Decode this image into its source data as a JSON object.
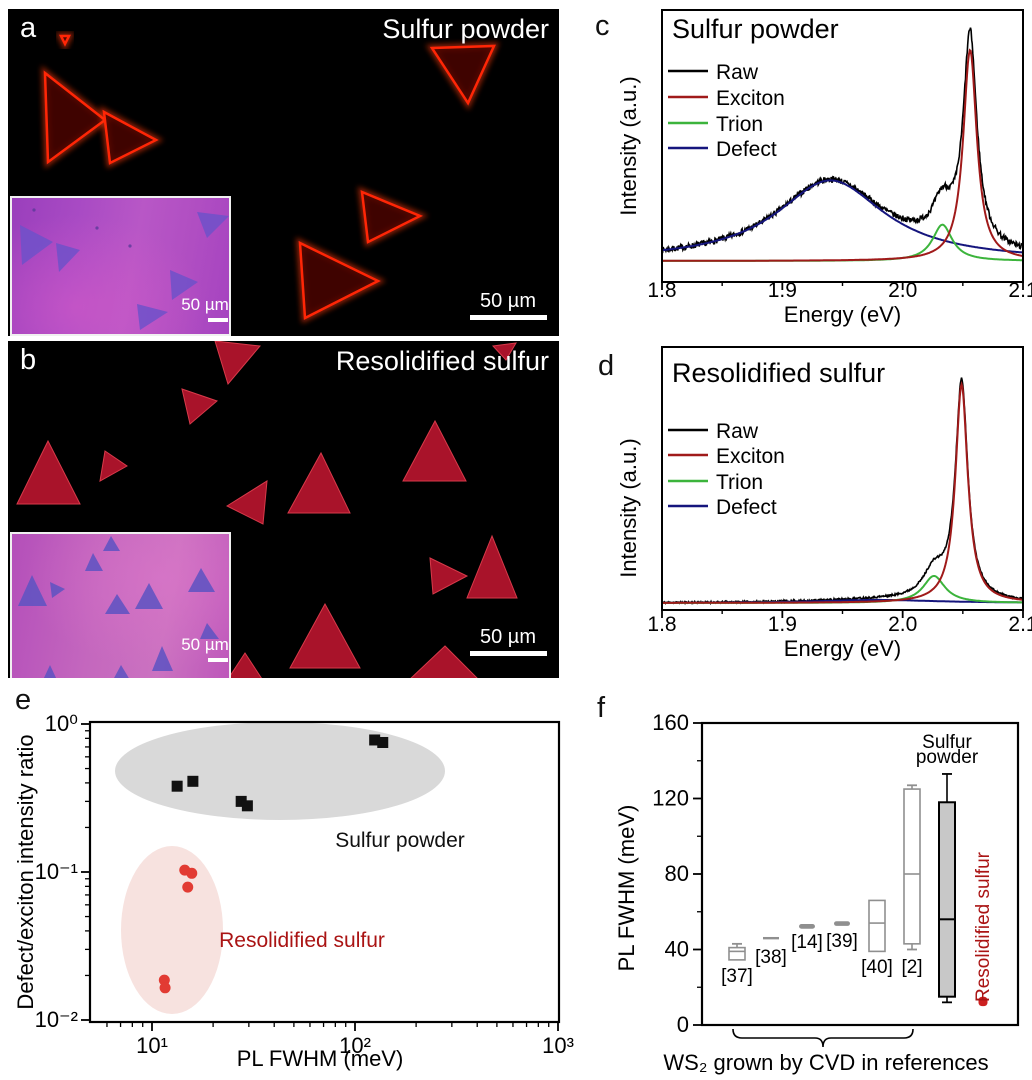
{
  "colors": {
    "raw": "#000000",
    "exciton": "#a01a1a",
    "trion": "#3cb43c",
    "defect": "#15157d",
    "scatter_black": "#111111",
    "scatter_red": "#e23b33",
    "ellipse_gray": "#d9d9d9",
    "ellipse_pink": "#f7e2df",
    "box_gray": "#8f8f8f",
    "box_fill": "#c8c8c8",
    "box_red": "#cc2020",
    "annotation_red": "#aa1414",
    "mic_triangle_a_stroke": "#ff2606",
    "mic_triangle_a_fill": "#4a0300",
    "mic_triangle_b_fill": "#b2142c",
    "inset_a_triangle": "#6f51c9",
    "inset_b_triangle": "#6053c2"
  },
  "panels": {
    "a": {
      "label": "a",
      "title": "Sulfur powder",
      "scale_bar": "50 µm",
      "triangles": [
        "37,64 97,111 40,153",
        "96,103 148,131 102,154",
        "424,39 486,37 460,94",
        "354,183 412,207 360,233",
        "292,234 370,272 297,309",
        "53,27 61,27 57,35"
      ],
      "inset": {
        "scale_bar": "50 µm",
        "triangles": [
          "8,27 41,44 10,67",
          "44,45 68,52 47,74",
          "185,14 217,18 195,40",
          "158,72 186,84 160,102",
          "125,106 156,114 128,132"
        ]
      }
    },
    "b": {
      "label": "b",
      "title": "Resolidified sulfur",
      "scale_bar": "50 µm",
      "triangles": [
        "207,0 252,5 220,43",
        "485,5 508,2 498,19",
        "174,48 209,60 182,83",
        "40,100 9,163 72,163",
        "97,110 119,125 92,140",
        "219,165 259,140 255,183",
        "313,112 280,172 342,172",
        "427,80 395,140 458,140",
        "422,217 459,235 425,253",
        "484,195 459,257 509,257",
        "317,263 282,327 352,327",
        "437,305 400,340 472,340",
        "237,312 220,338 254,338"
      ],
      "inset": {
        "scale_bar": "50 µm",
        "triangles": [
          "99,2 91,17 108,17",
          "81,19 73,37 91,37",
          "20,41 6,72 35,72",
          "38,48 53,55 40,64",
          "105,60 93,80 118,80",
          "137,49 123,75 151,75",
          "189,34 176,58 203,58",
          "195,89 188,105 207,105",
          "150,112 140,137 161,137",
          "38,131 31,146 45,146",
          "109,131 101,146 118,146"
        ]
      }
    },
    "c": {
      "label": "c"
    },
    "d": {
      "label": "d"
    },
    "e": {
      "label": "e"
    },
    "f": {
      "label": "f"
    }
  },
  "chart_data": [
    {
      "id": "c",
      "type": "line",
      "title": "Sulfur powder",
      "xlabel": "Energy (eV)",
      "ylabel": "Intensity (a.u.)",
      "xlim": [
        1.8,
        2.1
      ],
      "xticks": [
        1.8,
        1.9,
        2.0,
        2.1
      ],
      "xtick_labels": [
        "1.8",
        "1.9",
        "2.0",
        "2.1"
      ],
      "grid": false,
      "legend_position": "upper-left",
      "series": [
        {
          "name": "Raw",
          "color": "#000000",
          "role": "sum",
          "noise": 0.013
        },
        {
          "name": "Exciton",
          "color": "#a01a1a",
          "peak": {
            "shape": "lorentzian",
            "center": 2.056,
            "hwhm": 0.0068,
            "amplitude": 0.93
          }
        },
        {
          "name": "Trion",
          "color": "#3cb43c",
          "peak": {
            "shape": "lorentzian",
            "center": 2.033,
            "hwhm": 0.01,
            "amplitude": 0.16
          }
        },
        {
          "name": "Defect",
          "color": "#15157d",
          "peak": {
            "shape": "lorentzian",
            "center": 1.94,
            "hwhm": 0.055,
            "amplitude": 0.355
          }
        }
      ]
    },
    {
      "id": "d",
      "type": "line",
      "title": "Resolidified sulfur",
      "xlabel": "Energy (eV)",
      "ylabel": "Intensity (a.u.)",
      "xlim": [
        1.8,
        2.1
      ],
      "xticks": [
        1.8,
        1.9,
        2.0,
        2.1
      ],
      "xtick_labels": [
        "1.8",
        "1.9",
        "2.0",
        "2.1"
      ],
      "grid": false,
      "legend_position": "upper-left",
      "series": [
        {
          "name": "Raw",
          "color": "#000000",
          "role": "sum",
          "noise": 0.004
        },
        {
          "name": "Exciton",
          "color": "#a01a1a",
          "peak": {
            "shape": "lorentzian",
            "center": 2.049,
            "hwhm": 0.0062,
            "amplitude": 0.93
          }
        },
        {
          "name": "Trion",
          "color": "#3cb43c",
          "peak": {
            "shape": "lorentzian",
            "center": 2.026,
            "hwhm": 0.011,
            "amplitude": 0.115
          }
        },
        {
          "name": "Defect",
          "color": "#15157d",
          "peak": {
            "shape": "lorentzian",
            "center": 1.98,
            "hwhm": 0.06,
            "amplitude": 0.013
          }
        }
      ]
    },
    {
      "id": "e",
      "type": "scatter",
      "xlabel": "PL FWHM (meV)",
      "ylabel": "Defect/exciton intensity ratio",
      "xscale": "log",
      "yscale": "log",
      "xlim": [
        4.8,
        1000
      ],
      "ylim": [
        0.0095,
        1.05
      ],
      "xtick_labels": [
        "10¹",
        "10²",
        "10³"
      ],
      "ytick_labels": [
        "10⁰",
        "10⁻¹",
        "10⁻²"
      ],
      "series": [
        {
          "name": "Sulfur powder",
          "marker": "square",
          "color": "#111111",
          "points": [
            [
              13.3,
              0.38
            ],
            [
              15.9,
              0.41
            ],
            [
              27.5,
              0.3
            ],
            [
              29.5,
              0.28
            ],
            [
              125,
              0.78
            ],
            [
              137,
              0.75
            ]
          ]
        },
        {
          "name": "Resolidified sulfur",
          "marker": "circle",
          "color": "#e23b33",
          "points": [
            [
              14.5,
              0.103
            ],
            [
              15.7,
              0.098
            ],
            [
              15.0,
              0.079
            ],
            [
              11.5,
              0.0186
            ],
            [
              11.6,
              0.0165
            ]
          ]
        }
      ],
      "annotations": [
        {
          "text": "Sulfur powder",
          "color": "#111111"
        },
        {
          "text": "Resolidified sulfur",
          "color": "#aa1414"
        }
      ]
    },
    {
      "id": "f",
      "type": "box",
      "ylabel": "PL FWHM (meV)",
      "xlabel": "WS₂ grown by CVD in references",
      "ylim": [
        0,
        160
      ],
      "yticks": [
        0,
        40,
        80,
        120,
        160
      ],
      "group_label_top": [
        "Sulfur",
        "powder"
      ],
      "side_label": "Resolidified  sulfur",
      "boxes": [
        {
          "label": "[37]",
          "style": "open",
          "q1": 34.5,
          "median": 39,
          "q3": 41,
          "whisker_high": 43
        },
        {
          "label": "[38]",
          "style": "line",
          "value": 46
        },
        {
          "label": "[14]",
          "style": "dash",
          "low": 51,
          "high": 53.5
        },
        {
          "label": "[39]",
          "style": "dash",
          "low": 52.5,
          "high": 55
        },
        {
          "label": "[40]",
          "style": "open",
          "q1": 39,
          "median": 54,
          "q3": 66
        },
        {
          "label": "[2]",
          "style": "open",
          "q1": 43,
          "median": 80,
          "q3": 125,
          "whisker_low": 40,
          "whisker_high": 127
        },
        {
          "label": "Sulfur powder",
          "style": "filled",
          "q1": 15,
          "median": 56,
          "q3": 118,
          "whisker_low": 12,
          "whisker_high": 133
        },
        {
          "label": "Resolidified sulfur",
          "style": "blob",
          "low": 10,
          "high": 15
        }
      ]
    }
  ]
}
